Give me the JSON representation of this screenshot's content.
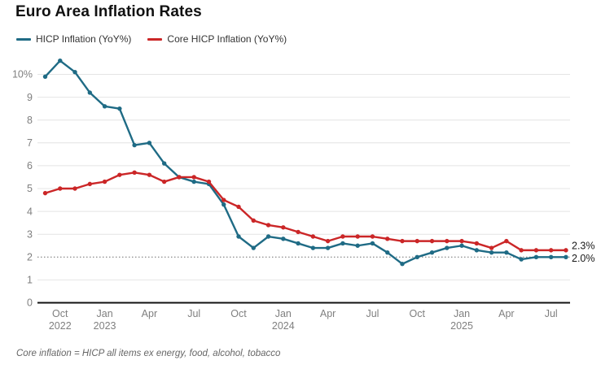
{
  "title": "Euro Area Inflation Rates",
  "footnote": "Core inflation = HICP all items ex energy, food, alcohol, tobacco",
  "colors": {
    "hicp": "#1f6b85",
    "core": "#cb2627",
    "grid": "#e4e4e4",
    "baseline": "#111111",
    "target_line": "#6e6e6e",
    "axis_label": "#7f7f7f",
    "end_label": "#1a1a1a",
    "title_text": "#111111",
    "legend_text": "#333333",
    "footnote_text": "#666666"
  },
  "legend": [
    {
      "label": "HICP Inflation (YoY%)",
      "color_key": "hicp"
    },
    {
      "label": "Core HICP Inflation (YoY%)",
      "color_key": "core"
    }
  ],
  "chart_data": {
    "type": "line",
    "x_months": [
      "2022-09",
      "2022-10",
      "2022-11",
      "2022-12",
      "2023-01",
      "2023-02",
      "2023-03",
      "2023-04",
      "2023-05",
      "2023-06",
      "2023-07",
      "2023-08",
      "2023-09",
      "2023-10",
      "2023-11",
      "2023-12",
      "2024-01",
      "2024-02",
      "2024-03",
      "2024-04",
      "2024-05",
      "2024-06",
      "2024-07",
      "2024-08",
      "2024-09",
      "2024-10",
      "2024-11",
      "2024-12",
      "2025-01",
      "2025-02",
      "2025-03",
      "2025-04",
      "2025-05",
      "2025-06",
      "2025-07",
      "2025-08"
    ],
    "series": [
      {
        "name": "HICP Inflation (YoY%)",
        "color_key": "hicp",
        "end_label": "2.0%",
        "values": [
          9.9,
          10.6,
          10.1,
          9.2,
          8.6,
          8.5,
          6.9,
          7.0,
          6.1,
          5.5,
          5.3,
          5.2,
          4.3,
          2.9,
          2.4,
          2.9,
          2.8,
          2.6,
          2.4,
          2.4,
          2.6,
          2.5,
          2.6,
          2.2,
          1.7,
          2.0,
          2.2,
          2.4,
          2.5,
          2.3,
          2.2,
          2.2,
          1.9,
          2.0,
          2.0,
          2.0
        ]
      },
      {
        "name": "Core HICP Inflation (YoY%)",
        "color_key": "core",
        "end_label": "2.3%",
        "values": [
          4.8,
          5.0,
          5.0,
          5.2,
          5.3,
          5.6,
          5.7,
          5.6,
          5.3,
          5.5,
          5.5,
          5.3,
          4.5,
          4.2,
          3.6,
          3.4,
          3.3,
          3.1,
          2.9,
          2.7,
          2.9,
          2.9,
          2.9,
          2.8,
          2.7,
          2.7,
          2.7,
          2.7,
          2.7,
          2.6,
          2.4,
          2.7,
          2.3,
          2.3,
          2.3,
          2.3
        ]
      }
    ],
    "ylim": [
      0,
      11
    ],
    "yticks": [
      0,
      1,
      2,
      3,
      4,
      5,
      6,
      7,
      8,
      9,
      10
    ],
    "ytick_labels": [
      "0",
      "1",
      "2",
      "3",
      "4",
      "5",
      "6",
      "7",
      "8",
      "9",
      "10%"
    ],
    "target_line_value": 2,
    "grid": true,
    "legend_position": "top-left",
    "xticks": [
      {
        "index": 1,
        "line1": "Oct",
        "line2": "2022"
      },
      {
        "index": 4,
        "line1": "Jan",
        "line2": "2023"
      },
      {
        "index": 7,
        "line1": "Apr",
        "line2": ""
      },
      {
        "index": 10,
        "line1": "Jul",
        "line2": ""
      },
      {
        "index": 13,
        "line1": "Oct",
        "line2": ""
      },
      {
        "index": 16,
        "line1": "Jan",
        "line2": "2024"
      },
      {
        "index": 19,
        "line1": "Apr",
        "line2": ""
      },
      {
        "index": 22,
        "line1": "Jul",
        "line2": ""
      },
      {
        "index": 25,
        "line1": "Oct",
        "line2": ""
      },
      {
        "index": 28,
        "line1": "Jan",
        "line2": "2025"
      },
      {
        "index": 31,
        "line1": "Apr",
        "line2": ""
      },
      {
        "index": 34,
        "line1": "Jul",
        "line2": ""
      }
    ]
  }
}
